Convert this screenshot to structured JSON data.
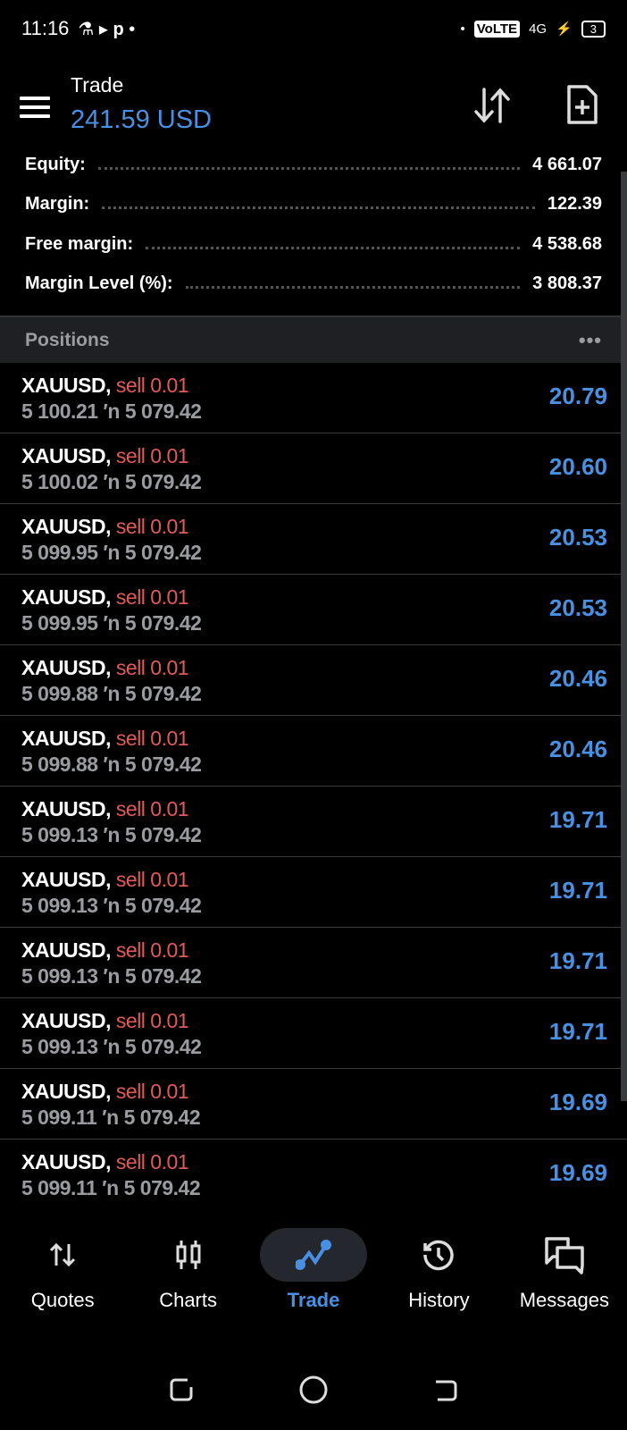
{
  "status_bar": {
    "time": "11:16",
    "network": "VoLTE",
    "signal": "4G",
    "battery": "3"
  },
  "header": {
    "title": "Trade",
    "balance": "241.59 USD"
  },
  "summary": [
    {
      "label": "Equity:",
      "value": "4 661.07"
    },
    {
      "label": "Margin:",
      "value": "122.39"
    },
    {
      "label": "Free margin:",
      "value": "4 538.68"
    },
    {
      "label": "Margin Level (%):",
      "value": "3 808.37"
    }
  ],
  "positions": {
    "title": "Positions",
    "more": "•••",
    "items": [
      {
        "symbol": "XAUUSD,",
        "side": "sell 0.01",
        "prices": "5 100.21 ′n  5 079.42",
        "profit": "20.79"
      },
      {
        "symbol": "XAUUSD,",
        "side": "sell 0.01",
        "prices": "5 100.02 ′n  5 079.42",
        "profit": "20.60"
      },
      {
        "symbol": "XAUUSD,",
        "side": "sell 0.01",
        "prices": "5 099.95 ′n  5 079.42",
        "profit": "20.53"
      },
      {
        "symbol": "XAUUSD,",
        "side": "sell 0.01",
        "prices": "5 099.95 ′n  5 079.42",
        "profit": "20.53"
      },
      {
        "symbol": "XAUUSD,",
        "side": "sell 0.01",
        "prices": "5 099.88 ′n  5 079.42",
        "profit": "20.46"
      },
      {
        "symbol": "XAUUSD,",
        "side": "sell 0.01",
        "prices": "5 099.88 ′n  5 079.42",
        "profit": "20.46"
      },
      {
        "symbol": "XAUUSD,",
        "side": "sell 0.01",
        "prices": "5 099.13 ′n  5 079.42",
        "profit": "19.71"
      },
      {
        "symbol": "XAUUSD,",
        "side": "sell 0.01",
        "prices": "5 099.13 ′n  5 079.42",
        "profit": "19.71"
      },
      {
        "symbol": "XAUUSD,",
        "side": "sell 0.01",
        "prices": "5 099.13 ′n  5 079.42",
        "profit": "19.71"
      },
      {
        "symbol": "XAUUSD,",
        "side": "sell 0.01",
        "prices": "5 099.13 ′n  5 079.42",
        "profit": "19.71"
      },
      {
        "symbol": "XAUUSD,",
        "side": "sell 0.01",
        "prices": "5 099.11 ′n  5 079.42",
        "profit": "19.69"
      },
      {
        "symbol": "XAUUSD,",
        "side": "sell 0.01",
        "prices": "5 099.11 ′n  5 079.42",
        "profit": "19.69"
      }
    ]
  },
  "nav": [
    {
      "label": "Quotes",
      "icon": "quotes-arrows-icon"
    },
    {
      "label": "Charts",
      "icon": "candlestick-icon"
    },
    {
      "label": "Trade",
      "icon": "trade-line-icon",
      "active": true
    },
    {
      "label": "History",
      "icon": "history-icon"
    },
    {
      "label": "Messages",
      "icon": "messages-icon"
    }
  ],
  "colors": {
    "accent": "#4a90e2",
    "sell": "#e05a5a",
    "muted": "#9a9ca0"
  }
}
